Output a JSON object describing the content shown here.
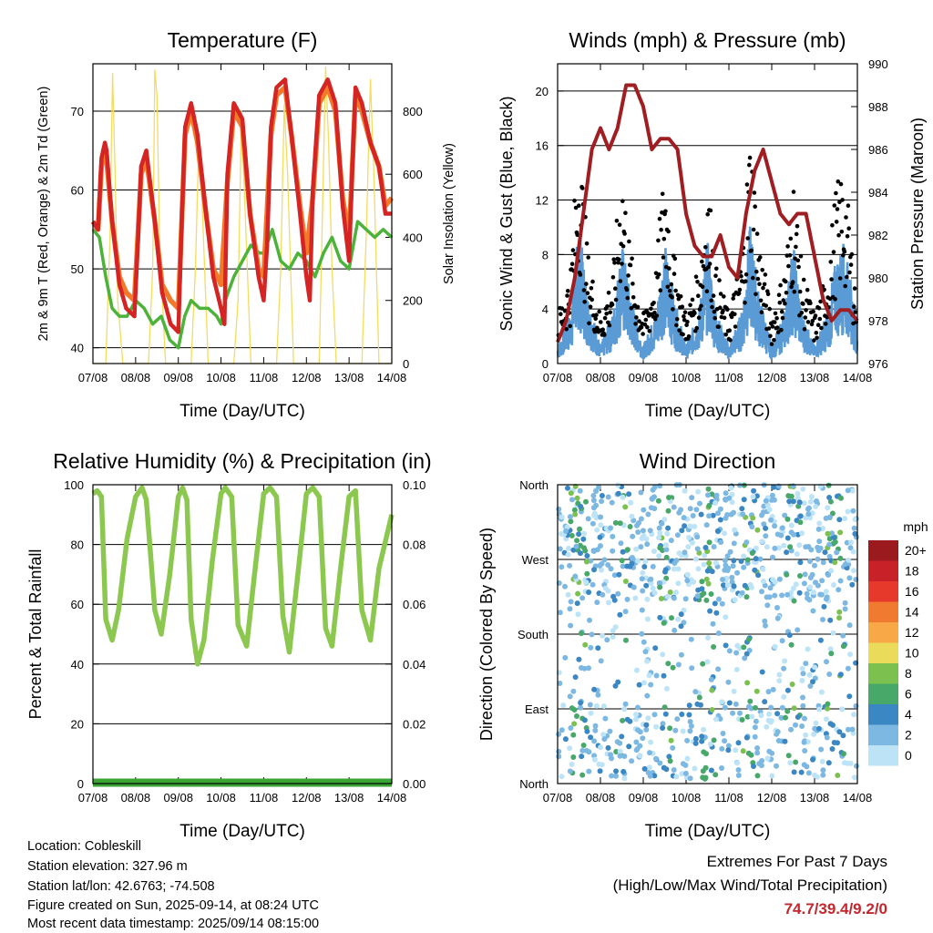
{
  "colors": {
    "temp_2m": "#d42424",
    "temp_9m": "#f2782a",
    "dewpoint": "#4cb23a",
    "solar": "#f3dc5f",
    "wind": "#5b9bd5",
    "gust": "#000000",
    "pressure": "#a01e22",
    "rh": "#8cc850",
    "precip": "#3aa535",
    "extremes_value": "#c4262e"
  },
  "chart_data": [
    {
      "id": "temperature",
      "type": "line",
      "title": "Temperature (F)",
      "xlabel": "Time (Day/UTC)",
      "ylabel": "2m & 9m T (Red, Orange) & 2m Td (Green)",
      "y2label": "Solar Insolation (Yellow)",
      "x_ticks": [
        "07/08",
        "08/08",
        "09/08",
        "10/08",
        "11/08",
        "12/08",
        "13/08",
        "14/08"
      ],
      "xlim": [
        0,
        7
      ],
      "ylim": [
        38,
        76
      ],
      "y_ticks": [
        40,
        50,
        60,
        70
      ],
      "y2lim": [
        0,
        950
      ],
      "y2_ticks": [
        0,
        200,
        400,
        600,
        800
      ],
      "grid": true,
      "series": [
        {
          "name": "2m T",
          "axis": "left",
          "color_key": "temp_2m",
          "x": [
            0,
            0.12,
            0.2,
            0.28,
            0.32,
            0.45,
            0.62,
            0.78,
            0.97,
            1.05,
            1.13,
            1.25,
            1.45,
            1.62,
            1.82,
            2.0,
            2.08,
            2.16,
            2.3,
            2.45,
            2.65,
            2.82,
            3.0,
            3.08,
            3.15,
            3.3,
            3.5,
            3.68,
            3.88,
            4.0,
            4.08,
            4.17,
            4.3,
            4.5,
            4.65,
            4.85,
            5.0,
            5.08,
            5.15,
            5.3,
            5.5,
            5.68,
            5.85,
            6.0,
            6.07,
            6.15,
            6.3,
            6.5,
            6.7,
            6.85,
            7.0
          ],
          "y": [
            56,
            55,
            64,
            66,
            65,
            56,
            48,
            45,
            44,
            53,
            63,
            65,
            56,
            47,
            43,
            42,
            56,
            68,
            71,
            67,
            57,
            49,
            45,
            43,
            62,
            71,
            69,
            57,
            49,
            46,
            53,
            68,
            73,
            74,
            67,
            57,
            49,
            46,
            60,
            72,
            74,
            71,
            58,
            51,
            62,
            73,
            71,
            66,
            63,
            57,
            57
          ]
        },
        {
          "name": "9m T",
          "axis": "left",
          "color_key": "temp_9m",
          "x": [
            0,
            0.12,
            0.2,
            0.3,
            0.45,
            0.62,
            0.78,
            0.97,
            1.13,
            1.25,
            1.45,
            1.62,
            1.82,
            2.0,
            2.16,
            2.3,
            2.45,
            2.65,
            2.82,
            3.0,
            3.15,
            3.3,
            3.5,
            3.68,
            3.88,
            4.0,
            4.17,
            4.3,
            4.5,
            4.65,
            4.85,
            5.0,
            5.15,
            5.3,
            5.5,
            5.68,
            5.85,
            6.0,
            6.15,
            6.3,
            6.5,
            6.7,
            6.85,
            7.0
          ],
          "y": [
            56,
            55,
            63,
            65,
            56,
            49,
            47,
            46,
            62,
            64,
            56,
            48,
            46,
            45,
            67,
            70,
            66,
            57,
            50,
            48,
            61,
            70,
            68,
            57,
            50,
            49,
            67,
            72,
            73,
            67,
            58,
            52,
            59,
            71,
            73,
            70,
            59,
            54,
            72,
            70,
            66,
            63,
            58,
            59
          ]
        },
        {
          "name": "2m Td",
          "axis": "left",
          "color_key": "dewpoint",
          "x": [
            0,
            0.15,
            0.3,
            0.45,
            0.62,
            0.8,
            1.0,
            1.2,
            1.4,
            1.6,
            1.8,
            2.0,
            2.15,
            2.3,
            2.5,
            2.7,
            2.9,
            3.0,
            3.1,
            3.3,
            3.5,
            3.7,
            3.9,
            4.0,
            4.2,
            4.4,
            4.6,
            4.8,
            5.0,
            5.2,
            5.4,
            5.6,
            5.8,
            6.0,
            6.2,
            6.4,
            6.6,
            6.8,
            7.0
          ],
          "y": [
            55,
            54,
            49,
            45,
            44,
            44,
            46,
            45,
            43,
            44,
            41,
            40,
            44,
            46,
            45,
            45,
            44,
            43,
            46,
            49,
            51,
            53,
            52,
            52,
            55,
            51,
            50,
            52,
            51,
            49,
            52,
            54,
            51,
            50,
            56,
            55,
            54,
            55,
            54
          ]
        },
        {
          "name": "Solar Insolation",
          "axis": "right",
          "color_key": "solar",
          "x": [
            0,
            0.3,
            0.4,
            0.46,
            0.52,
            0.58,
            0.7,
            1.0,
            1.3,
            1.4,
            1.45,
            1.5,
            1.56,
            1.7,
            2.0,
            2.3,
            2.4,
            2.48,
            2.56,
            2.7,
            3.0,
            3.3,
            3.4,
            3.48,
            3.56,
            3.7,
            4.0,
            4.3,
            4.4,
            4.48,
            4.56,
            4.7,
            5.0,
            5.3,
            5.38,
            5.45,
            5.52,
            5.6,
            5.7,
            6.0,
            6.3,
            6.4,
            6.5,
            6.58,
            6.7,
            7.0
          ],
          "y": [
            0,
            0,
            400,
            920,
            600,
            200,
            0,
            0,
            0,
            300,
            930,
            850,
            400,
            0,
            0,
            0,
            300,
            700,
            500,
            0,
            0,
            0,
            200,
            800,
            500,
            0,
            0,
            0,
            300,
            820,
            600,
            0,
            0,
            0,
            500,
            940,
            700,
            300,
            0,
            0,
            0,
            400,
            900,
            600,
            0,
            0
          ]
        }
      ]
    },
    {
      "id": "winds",
      "type": "line",
      "title": "Winds (mph) & Pressure (mb)",
      "xlabel": "Time (Day/UTC)",
      "ylabel": "Sonic Wind & Gust (Blue, Black)",
      "y2label": "Station Pressure (Maroon)",
      "x_ticks": [
        "07/08",
        "08/08",
        "09/08",
        "10/08",
        "11/08",
        "12/08",
        "13/08",
        "14/08"
      ],
      "xlim": [
        0,
        7
      ],
      "ylim": [
        0,
        22
      ],
      "y_ticks": [
        0,
        4,
        8,
        12,
        16,
        20
      ],
      "y2lim": [
        976,
        990
      ],
      "y2_ticks": [
        976,
        978,
        980,
        982,
        984,
        986,
        988,
        990
      ],
      "grid": true,
      "series": [
        {
          "name": "Sonic Wind",
          "axis": "left",
          "color_key": "wind",
          "x": [
            0,
            0.3,
            0.5,
            0.7,
            1.0,
            1.3,
            1.5,
            1.7,
            2.0,
            2.3,
            2.5,
            2.7,
            3.0,
            3.3,
            3.5,
            3.7,
            4.0,
            4.3,
            4.5,
            4.7,
            5.0,
            5.3,
            5.5,
            5.7,
            6.0,
            6.3,
            6.5,
            6.7,
            7.0
          ],
          "y": [
            1,
            3,
            8,
            4,
            1,
            3,
            7,
            4,
            1,
            3,
            7,
            4,
            1,
            3,
            7,
            3,
            1,
            3,
            8,
            4,
            1,
            3,
            7,
            3,
            1,
            3,
            6,
            7,
            2
          ]
        },
        {
          "name": "Gust",
          "axis": "left",
          "color_key": "gust",
          "x": [
            0,
            0.3,
            0.5,
            0.7,
            1.0,
            1.3,
            1.5,
            1.7,
            2.0,
            2.3,
            2.5,
            2.7,
            3.0,
            3.3,
            3.5,
            3.7,
            4.0,
            4.3,
            4.5,
            4.7,
            5.0,
            5.3,
            5.5,
            5.7,
            6.0,
            6.3,
            6.5,
            6.7,
            7.0
          ],
          "y": [
            3,
            6,
            15,
            7,
            3,
            6,
            13,
            7,
            3,
            6,
            13,
            7,
            3,
            6,
            12,
            6,
            3,
            7,
            15,
            8,
            3,
            6,
            12,
            6,
            3,
            6,
            11,
            12,
            4
          ]
        },
        {
          "name": "Station Pressure",
          "axis": "right",
          "color_key": "pressure",
          "x": [
            0,
            0.2,
            0.4,
            0.6,
            0.8,
            1.0,
            1.2,
            1.4,
            1.6,
            1.8,
            2.0,
            2.2,
            2.4,
            2.6,
            2.8,
            3.0,
            3.2,
            3.4,
            3.6,
            3.8,
            4.0,
            4.2,
            4.4,
            4.6,
            4.8,
            5.0,
            5.2,
            5.4,
            5.6,
            5.8,
            6.0,
            6.2,
            6.4,
            6.6,
            6.8,
            7.0
          ],
          "y": [
            977,
            978,
            980,
            983,
            986,
            987,
            986,
            987,
            989,
            989,
            988,
            986,
            986.5,
            986.5,
            986,
            983,
            981.5,
            981,
            981,
            982,
            980.5,
            980,
            983,
            985,
            986,
            984.5,
            983,
            982.5,
            983,
            983,
            981,
            979,
            978,
            978.5,
            978.5,
            978
          ]
        }
      ]
    },
    {
      "id": "humidity",
      "type": "line",
      "title": "Relative Humidity (%) & Precipitation (in)",
      "xlabel": "Time (Day/UTC)",
      "ylabel": "Percent & Total Rainfall",
      "x_ticks": [
        "07/08",
        "08/08",
        "09/08",
        "10/08",
        "11/08",
        "12/08",
        "13/08",
        "14/08"
      ],
      "xlim": [
        0,
        7
      ],
      "ylim": [
        0,
        100
      ],
      "y_ticks": [
        0,
        20,
        40,
        60,
        80,
        100
      ],
      "y2lim": [
        0,
        0.1
      ],
      "y2_ticks": [
        "0.00",
        "0.02",
        "0.04",
        "0.06",
        "0.08",
        "0.10"
      ],
      "grid": true,
      "series": [
        {
          "name": "Relative Humidity",
          "axis": "left",
          "color_key": "rh",
          "x": [
            0,
            0.1,
            0.2,
            0.3,
            0.45,
            0.6,
            0.8,
            1.0,
            1.15,
            1.25,
            1.45,
            1.6,
            1.8,
            2.0,
            2.1,
            2.2,
            2.3,
            2.45,
            2.6,
            2.8,
            3.0,
            3.1,
            3.25,
            3.4,
            3.6,
            3.8,
            4.0,
            4.15,
            4.3,
            4.45,
            4.6,
            4.8,
            5.0,
            5.15,
            5.3,
            5.45,
            5.6,
            5.8,
            6.0,
            6.15,
            6.3,
            6.5,
            6.7,
            7.0
          ],
          "y": [
            97,
            98,
            96,
            55,
            48,
            58,
            82,
            96,
            99,
            95,
            58,
            50,
            70,
            96,
            99,
            95,
            55,
            40,
            48,
            75,
            97,
            99,
            96,
            53,
            46,
            72,
            97,
            99,
            96,
            56,
            44,
            70,
            97,
            99,
            96,
            52,
            46,
            72,
            96,
            98,
            58,
            48,
            72,
            90
          ]
        },
        {
          "name": "Total Precipitation",
          "axis": "right",
          "color_key": "precip",
          "x": [
            0,
            7
          ],
          "y": [
            0,
            0
          ]
        }
      ]
    },
    {
      "id": "wind_direction",
      "type": "scatter",
      "title": "Wind Direction",
      "xlabel": "Time (Day/UTC)",
      "ylabel": "Direction (Colored By Speed)",
      "x_ticks": [
        "07/08",
        "08/08",
        "09/08",
        "10/08",
        "11/08",
        "12/08",
        "13/08",
        "14/08"
      ],
      "xlim": [
        0,
        7
      ],
      "ylim": [
        0,
        360
      ],
      "y_ticks": [
        "North",
        "East",
        "South",
        "West",
        "North"
      ],
      "grid": true,
      "colorbar": {
        "title": "mph",
        "labels": [
          "20+",
          "18",
          "16",
          "14",
          "12",
          "10",
          "8",
          "6",
          "4",
          "2",
          "0"
        ],
        "colors": [
          "#9b1a1e",
          "#c82128",
          "#e6392b",
          "#f07a2f",
          "#f8a846",
          "#eadc5a",
          "#7cc04f",
          "#48a86a",
          "#3a87c3",
          "#7db8e2",
          "#bde3f7"
        ]
      }
    }
  ],
  "footer": {
    "location": "Location: Cobleskill",
    "elevation": "Station elevation: 327.96 m",
    "latlon": "Station lat/lon: 42.6763; -74.508",
    "created": "Figure created on Sun, 2025-09-14, at 08:24 UTC",
    "recent": "Most recent data timestamp: 2025/09/14 08:15:00"
  },
  "extremes": {
    "line1": "Extremes For Past 7 Days",
    "line2": "(High/Low/Max Wind/Total Precipitation)",
    "value": "74.7/39.4/9.2/0"
  }
}
